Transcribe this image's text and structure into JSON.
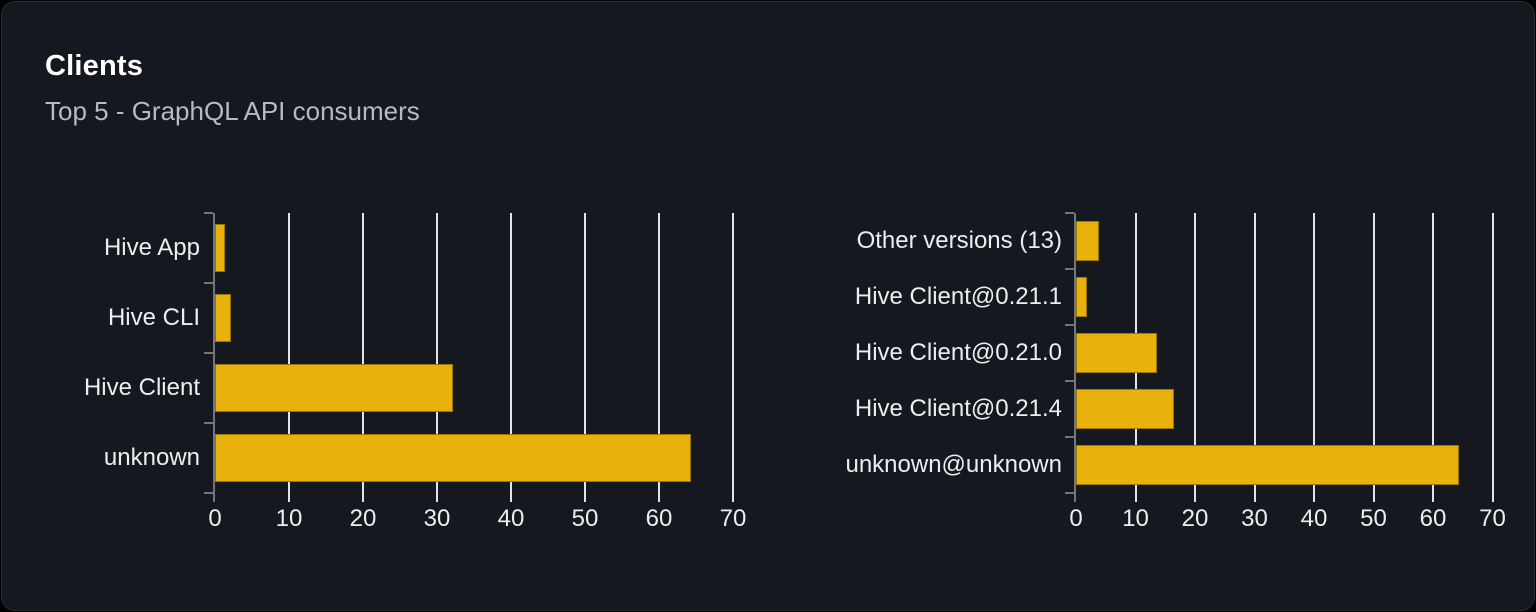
{
  "card": {
    "title": "Clients",
    "subtitle": "Top 5 - GraphQL API consumers"
  },
  "colors": {
    "page_bg": "#000000",
    "card_bg": "#15181e",
    "card_border": "#272b32",
    "title_text": "#ffffff",
    "subtitle_text": "#b7bac0",
    "label_text": "#eceded",
    "gridline": "#e2e4e8",
    "axis_line": "#71757e",
    "bar_fill": "#e9b10b",
    "bar_edge": "#9b7607"
  },
  "chart_data": [
    {
      "type": "bar",
      "orientation": "horizontal",
      "title": "",
      "xlabel": "",
      "ylabel": "",
      "legend": null,
      "grid": true,
      "xlim": [
        0,
        70
      ],
      "xticks": [
        0,
        10,
        20,
        30,
        40,
        50,
        60,
        70
      ],
      "categories": [
        "Hive App",
        "Hive CLI",
        "Hive Client",
        "unknown"
      ],
      "values": [
        1.4,
        2.2,
        32.1,
        64.3
      ]
    },
    {
      "type": "bar",
      "orientation": "horizontal",
      "title": "",
      "xlabel": "",
      "ylabel": "",
      "legend": null,
      "grid": true,
      "xlim": [
        0,
        70
      ],
      "xticks": [
        0,
        10,
        20,
        30,
        40,
        50,
        60,
        70
      ],
      "categories": [
        "Other versions (13)",
        "Hive Client@0.21.1",
        "Hive Client@0.21.0",
        "Hive Client@0.21.4",
        "unknown@unknown"
      ],
      "values": [
        3.8,
        1.9,
        13.6,
        16.4,
        64.3
      ]
    }
  ]
}
